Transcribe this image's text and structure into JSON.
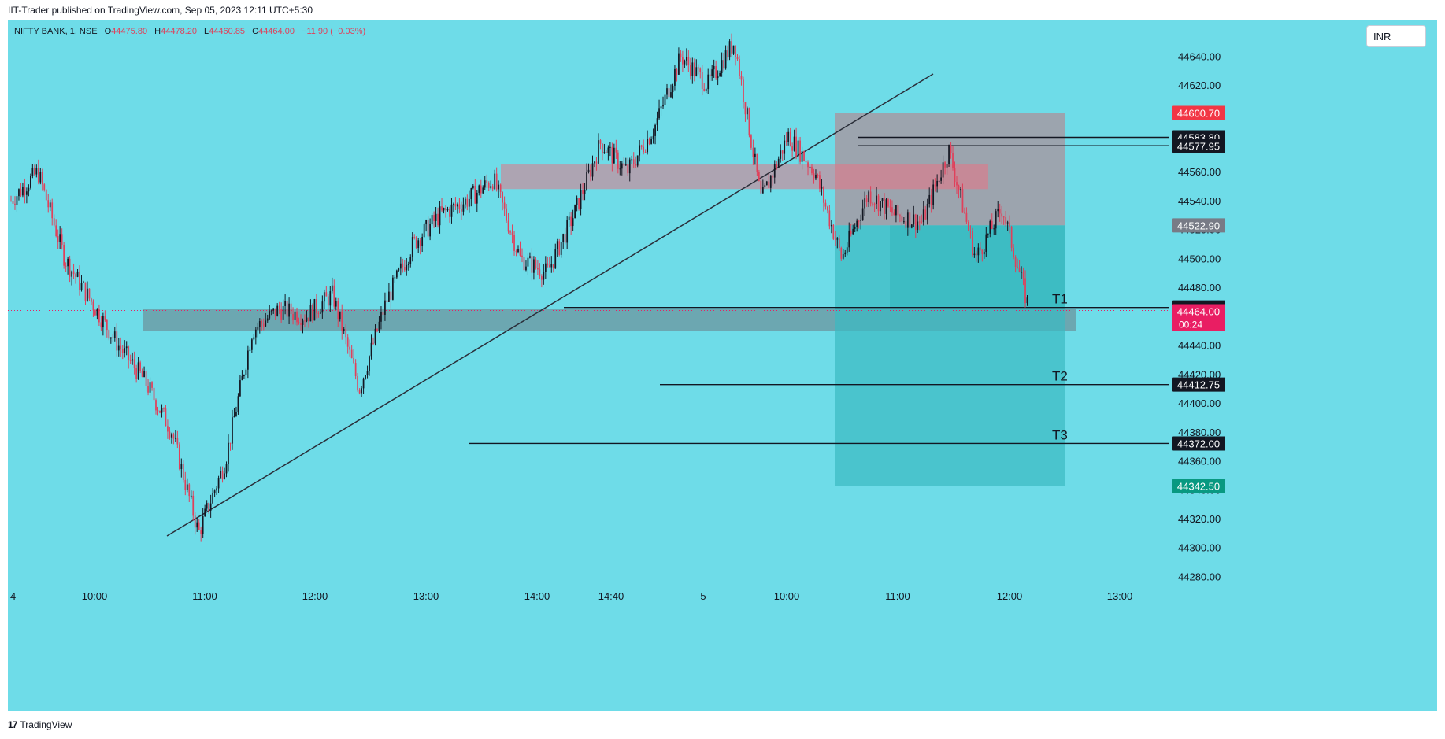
{
  "header": {
    "publisher_line": "IIT-Trader published on TradingView.com, Sep 05, 2023 12:11 UTC+5:30"
  },
  "legend": {
    "symbol": "NIFTY BANK, 1, NSE",
    "open_label": "O",
    "open": "44475.80",
    "high_label": "H",
    "high": "44478.20",
    "low_label": "L",
    "low": "44460.85",
    "close_label": "C",
    "close": "44464.00",
    "change": "−11.90 (−0.03%)"
  },
  "currency_button": "INR",
  "footer": {
    "brand": "TradingView",
    "brand_mark": "17"
  },
  "colors": {
    "background": "#6edce8",
    "up": "#131722",
    "down": "#e0405a",
    "target_zone": "#3ab9c2",
    "stop_zone": "#a49aa3",
    "supply_zone": "#b99aa8",
    "demand_zone": "#6b9aa3"
  },
  "chart_data": {
    "type": "candlestick",
    "instrument": "NIFTY BANK",
    "interval": "1",
    "ylim": [
      44270,
      44655
    ],
    "y_ticks": [
      44280,
      44300,
      44320,
      44340,
      44360,
      44380,
      44400,
      44420,
      44440,
      44460,
      44480,
      44500,
      44520,
      44540,
      44560,
      44580,
      44600,
      44620,
      44640
    ],
    "x_tick_labels": [
      "4",
      "10:00",
      "11:00",
      "12:00",
      "13:00",
      "14:00",
      "14:40",
      "5",
      "10:00",
      "11:00",
      "12:00",
      "13:00"
    ],
    "price_path": [
      {
        "t": "09:15",
        "p": 44540
      },
      {
        "t": "09:30",
        "p": 44560
      },
      {
        "t": "09:45",
        "p": 44500
      },
      {
        "t": "10:00",
        "p": 44470
      },
      {
        "t": "10:15",
        "p": 44440
      },
      {
        "t": "10:30",
        "p": 44415
      },
      {
        "t": "10:40",
        "p": 44380
      },
      {
        "t": "10:50",
        "p": 44310
      },
      {
        "t": "11:00",
        "p": 44360
      },
      {
        "t": "11:10",
        "p": 44450
      },
      {
        "t": "11:30",
        "p": 44465
      },
      {
        "t": "11:50",
        "p": 44460
      },
      {
        "t": "12:00",
        "p": 44475
      },
      {
        "t": "12:10",
        "p": 44410
      },
      {
        "t": "12:20",
        "p": 44470
      },
      {
        "t": "12:40",
        "p": 44510
      },
      {
        "t": "13:00",
        "p": 44530
      },
      {
        "t": "13:20",
        "p": 44540
      },
      {
        "t": "13:40",
        "p": 44555
      },
      {
        "t": "14:00",
        "p": 44500
      },
      {
        "t": "14:20",
        "p": 44490
      },
      {
        "t": "14:40",
        "p": 44530
      },
      {
        "t": "15:00",
        "p": 44580
      },
      {
        "t": "15:15",
        "p": 44560
      },
      {
        "t": "15:25",
        "p": 44590
      },
      {
        "t": "09:20",
        "p": 44640
      },
      {
        "t": "09:40",
        "p": 44620
      },
      {
        "t": "10:00",
        "p": 44650
      },
      {
        "t": "10:10",
        "p": 44540
      },
      {
        "t": "10:25",
        "p": 44585
      },
      {
        "t": "10:40",
        "p": 44560
      },
      {
        "t": "10:50",
        "p": 44500
      },
      {
        "t": "11:00",
        "p": 44545
      },
      {
        "t": "11:20",
        "p": 44530
      },
      {
        "t": "11:40",
        "p": 44525
      },
      {
        "t": "11:55",
        "p": 44575
      },
      {
        "t": "12:05",
        "p": 44500
      },
      {
        "t": "12:08",
        "p": 44535
      },
      {
        "t": "12:11",
        "p": 44464
      }
    ],
    "horizontal_lines": [
      {
        "price": 44583.8,
        "label": ""
      },
      {
        "price": 44577.95,
        "label": ""
      },
      {
        "price": 44466.1,
        "label": "T1"
      },
      {
        "price": 44412.75,
        "label": "T2"
      },
      {
        "price": 44372.0,
        "label": "T3"
      }
    ],
    "zones": [
      {
        "name": "supply",
        "from": 44548,
        "to": 44565
      },
      {
        "name": "demand",
        "from": 44450,
        "to": 44465
      },
      {
        "name": "position-stop",
        "from": 44522.9,
        "to": 44600.7
      },
      {
        "name": "position-target",
        "from": 44342.5,
        "to": 44522.9
      }
    ],
    "price_labels": [
      {
        "value": "44600.70",
        "color": "#f23645"
      },
      {
        "value": "44583.80",
        "color": "#131722"
      },
      {
        "value": "44577.95",
        "color": "#131722"
      },
      {
        "value": "44522.90",
        "color": "#787b86"
      },
      {
        "value": "44466.10",
        "color": "#131722"
      },
      {
        "value": "44464.00",
        "color": "#e91e63",
        "countdown": "00:24"
      },
      {
        "value": "44412.75",
        "color": "#131722"
      },
      {
        "value": "44372.00",
        "color": "#131722"
      },
      {
        "value": "44342.50",
        "color": "#089981"
      }
    ],
    "last_price": 44464.0
  }
}
